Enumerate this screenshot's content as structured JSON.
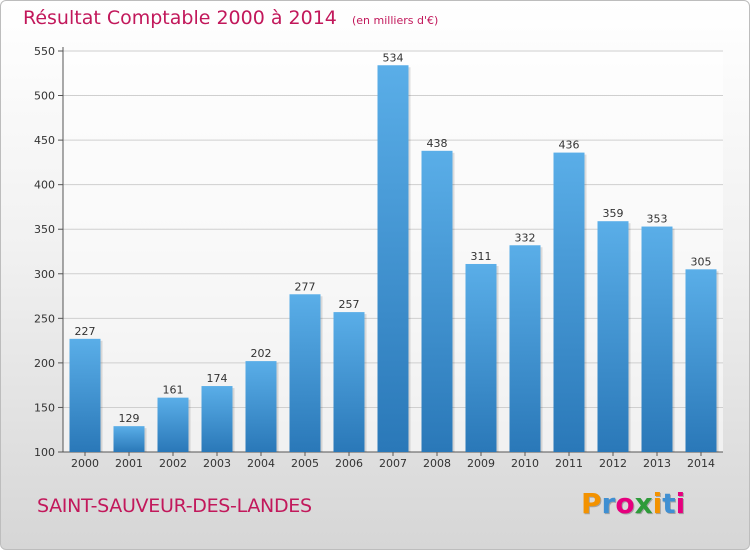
{
  "title": "Résultat Comptable 2000 à 2014",
  "unit": "(en milliers d'€)",
  "commune": "SAINT-SAUVEUR-DES-LANDES",
  "logo": {
    "text": "Proxiti",
    "letters": [
      "P",
      "r",
      "o",
      "x",
      "i",
      "t",
      "i"
    ],
    "colors": [
      "#f39200",
      "#3f8fd2",
      "#e6007e",
      "#2e9b3a",
      "#f39200",
      "#3f8fd2",
      "#e6007e"
    ]
  },
  "colors": {
    "bar_light": "#5aaee8",
    "bar_dark": "#2a78b8",
    "title": "#c2185b",
    "grid": "#cfcfcf"
  },
  "chart_data": {
    "type": "bar",
    "categories": [
      "2000",
      "2001",
      "2002",
      "2003",
      "2004",
      "2005",
      "2006",
      "2007",
      "2008",
      "2009",
      "2010",
      "2011",
      "2012",
      "2013",
      "2014"
    ],
    "values": [
      227,
      129,
      161,
      174,
      202,
      277,
      257,
      534,
      438,
      311,
      332,
      436,
      359,
      353,
      305
    ],
    "data_labels": [
      "227",
      "129",
      "161",
      "174",
      "202",
      "277",
      "257",
      "534",
      "438",
      "311",
      "332",
      "436",
      "359",
      "353",
      "305"
    ],
    "yticks": [
      "100",
      "150",
      "200",
      "250",
      "300",
      "350",
      "400",
      "450",
      "500",
      "550"
    ],
    "ylim": [
      100,
      550
    ],
    "grid": true,
    "title": "Résultat Comptable 2000 à 2014",
    "xlabel": "",
    "ylabel": ""
  }
}
